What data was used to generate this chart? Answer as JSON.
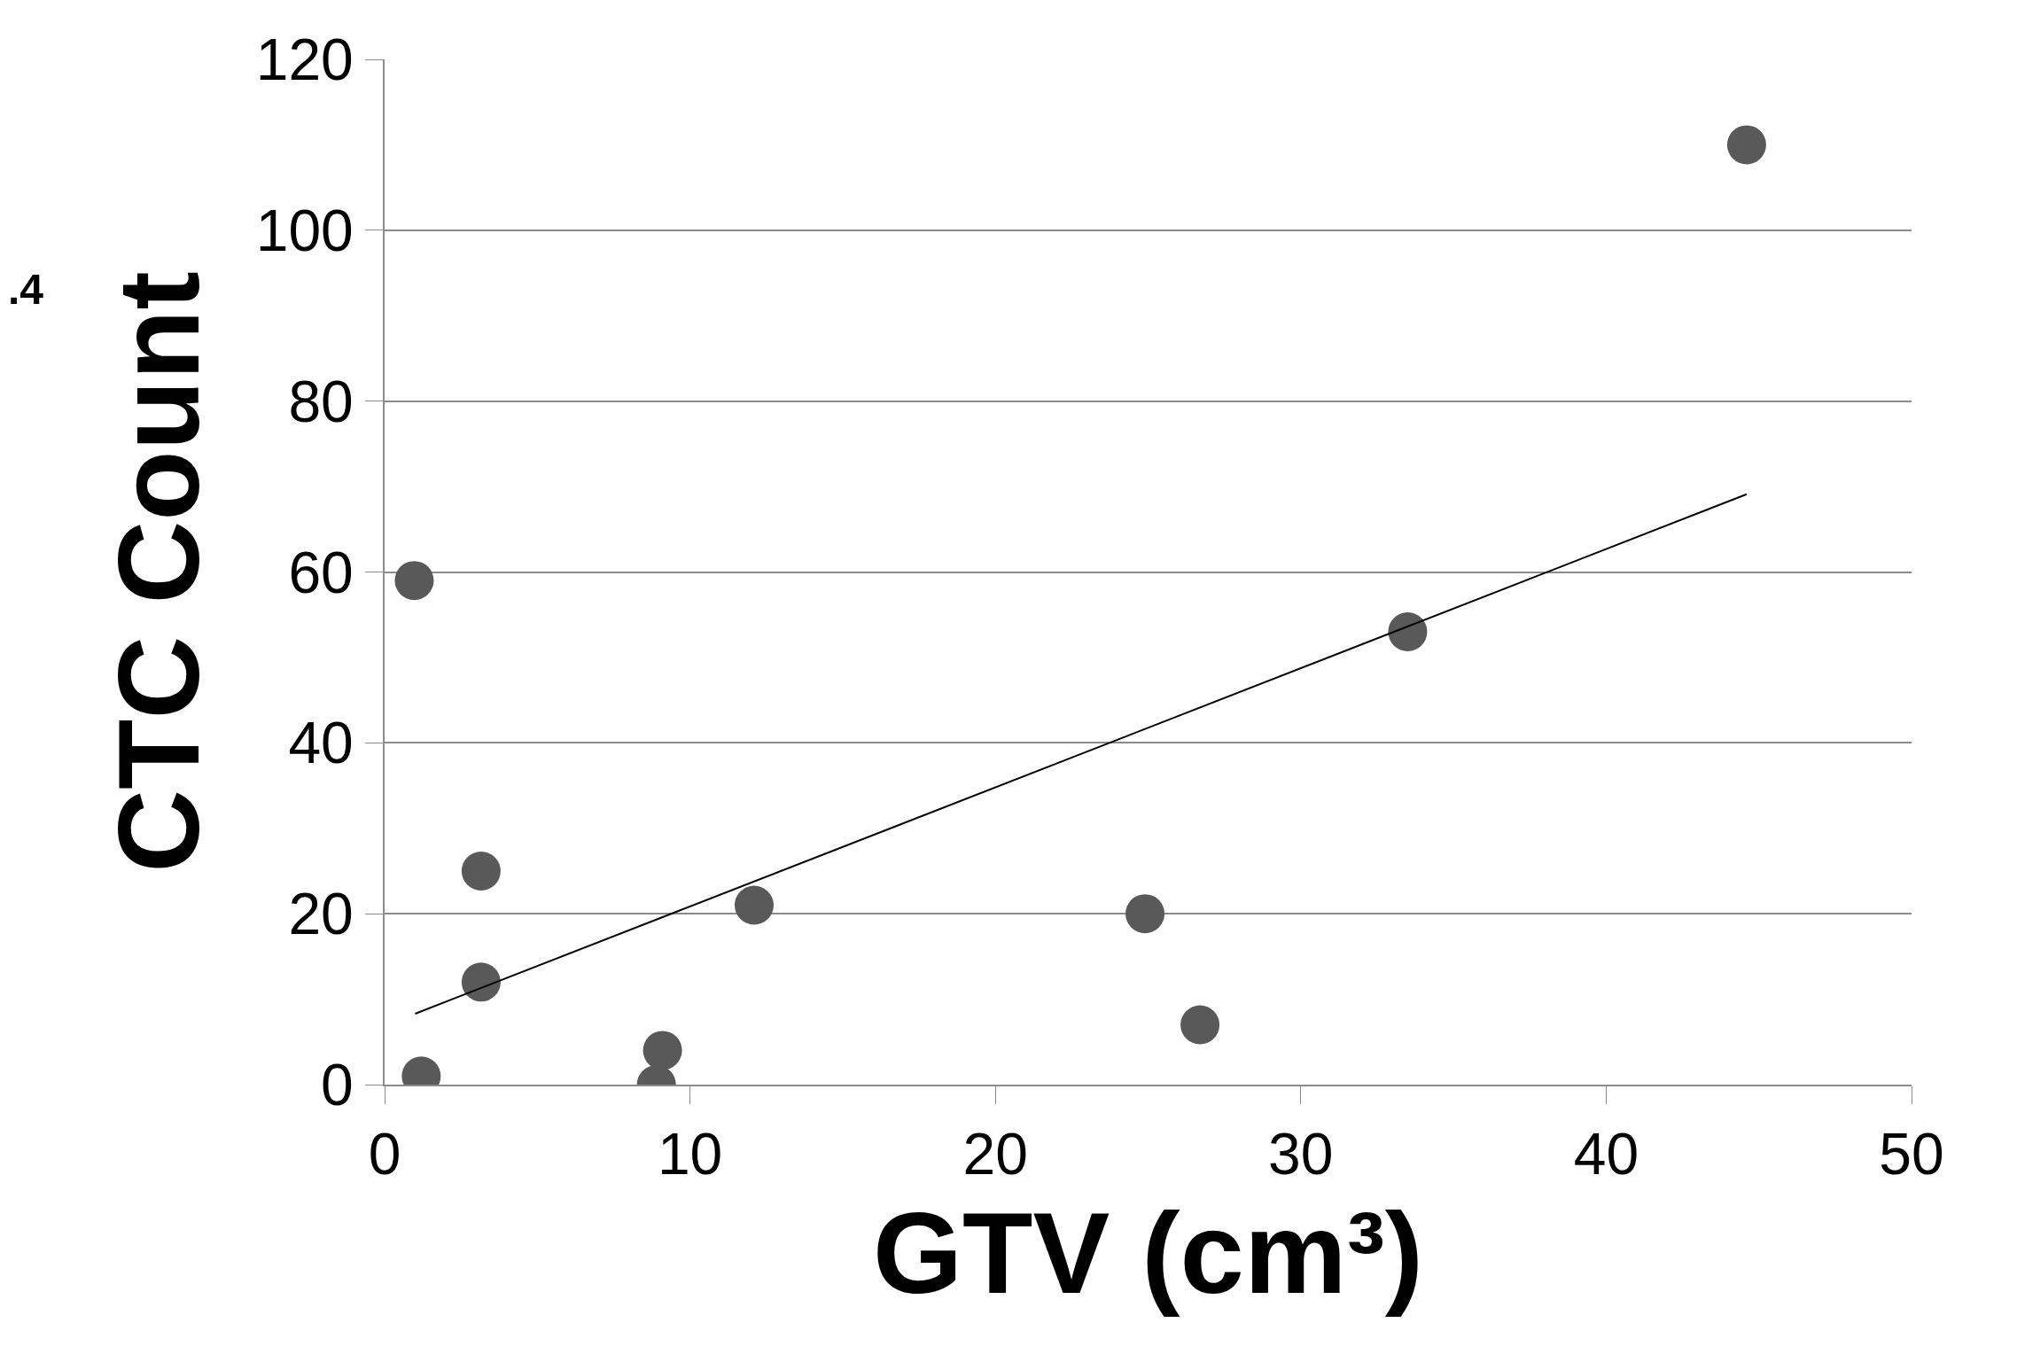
{
  "chart_data": {
    "type": "scatter",
    "xlabel": "GTV (cm³)",
    "ylabel": "CTC Count",
    "x": [
      0.97,
      1.2,
      3.16,
      3.16,
      8.9,
      9.1,
      12.1,
      24.9,
      26.7,
      33.5,
      44.6
    ],
    "series": [
      {
        "color": "#595959",
        "marker": "circle",
        "values": [
          59,
          1,
          25,
          12,
          0,
          4,
          21,
          20,
          7,
          53,
          110
        ]
      },
      {
        "type": "line",
        "color": "#000000",
        "x": [
          1.0,
          44.6
        ],
        "values": [
          8.3,
          69.1
        ]
      }
    ],
    "xlim": [
      0,
      50
    ],
    "xticks": [
      0,
      10,
      20,
      30,
      40,
      50
    ],
    "ylim": [
      0,
      120
    ],
    "yticks": [
      0,
      20,
      40,
      60,
      80,
      100,
      120
    ],
    "grid": "y",
    "line_style": "solid",
    "annotations": [
      ".4"
    ]
  }
}
